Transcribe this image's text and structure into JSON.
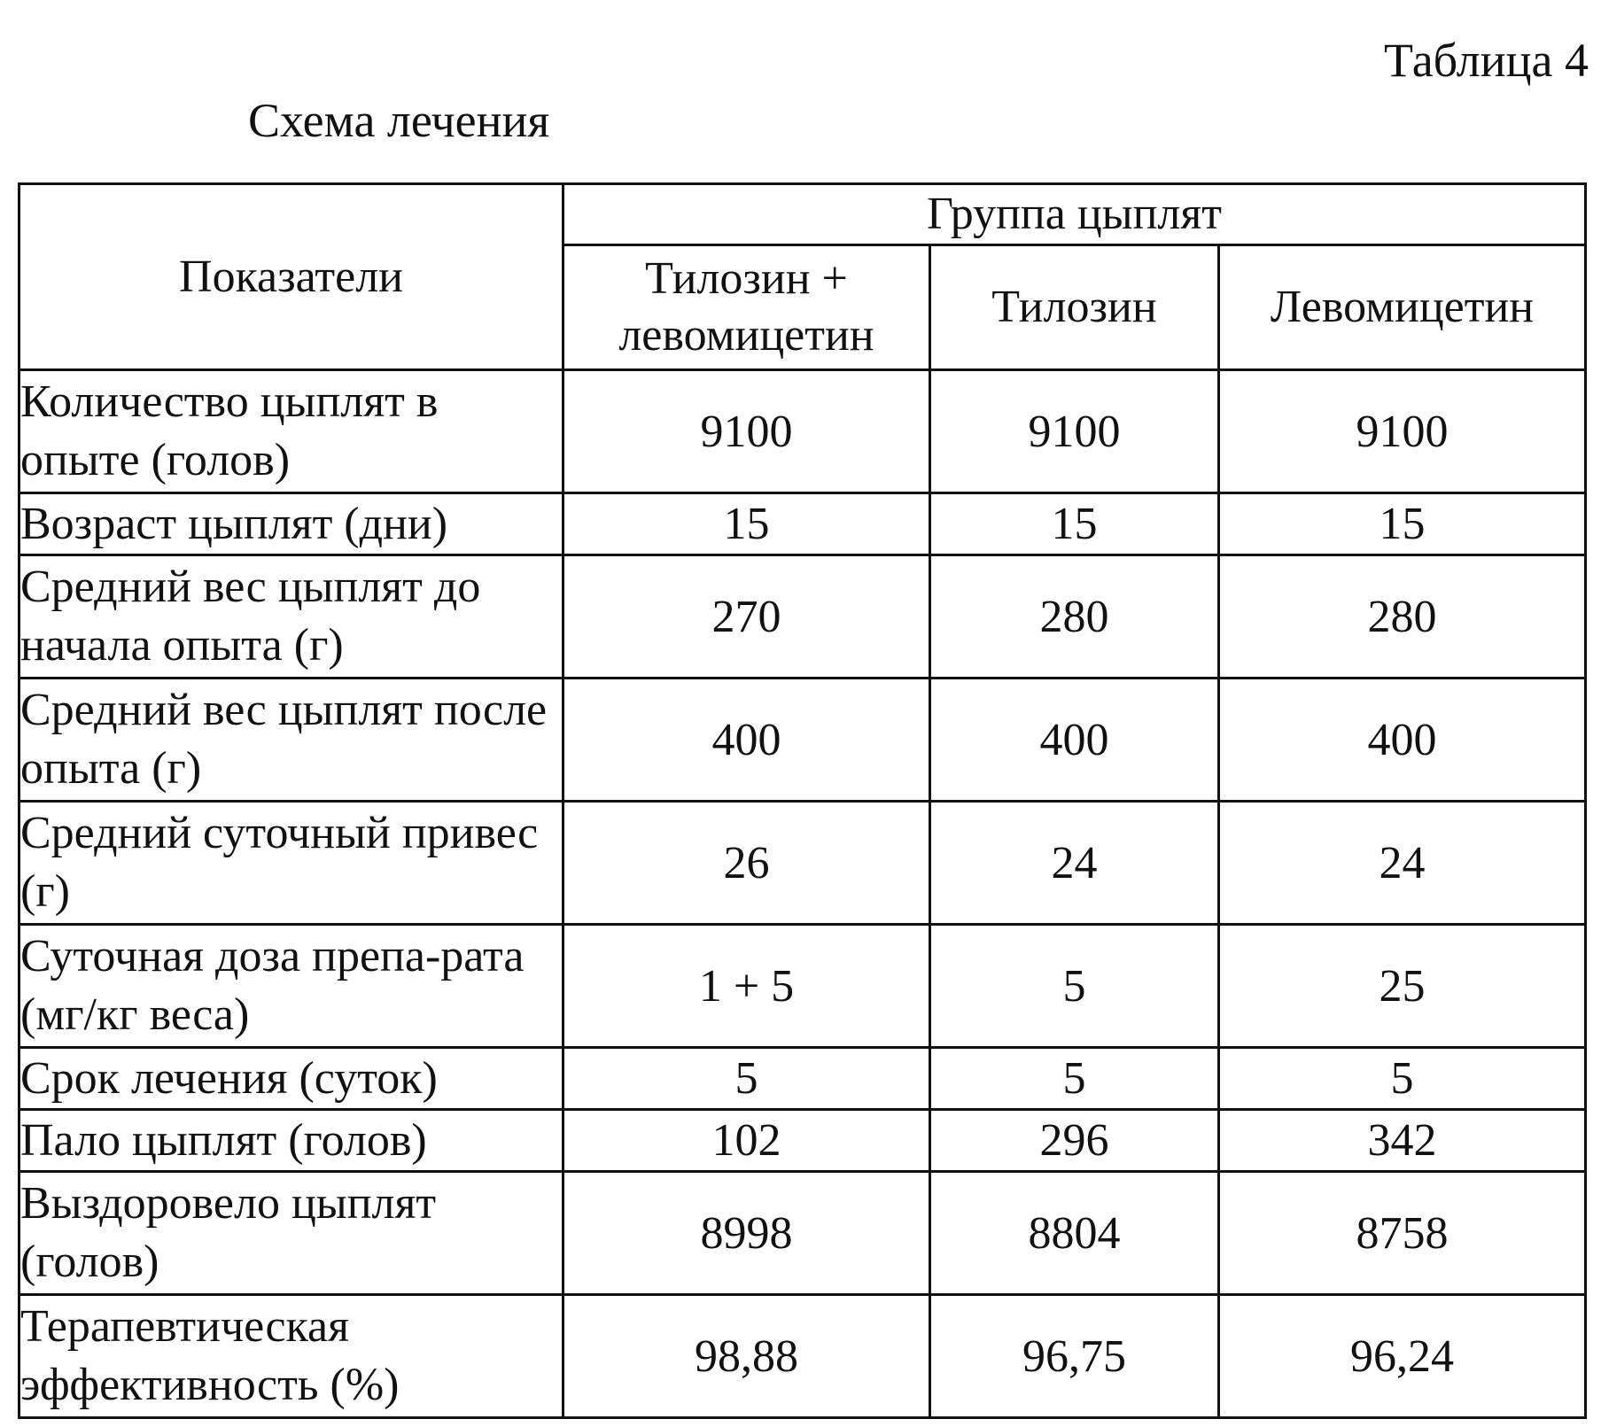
{
  "header": {
    "table_number": "Таблица 4",
    "title": "Схема лечения"
  },
  "table": {
    "label_header": "Показатели",
    "group_header": "Группа цыплят",
    "columns": [
      "Тилозин + левомицетин",
      "Тилозин",
      "Левомицетин"
    ],
    "rows": [
      {
        "label": "Количество цыплят в опыте (голов)",
        "values": [
          "9100",
          "9100",
          "9100"
        ]
      },
      {
        "label": "Возраст цыплят (дни)",
        "values": [
          "15",
          "15",
          "15"
        ]
      },
      {
        "label": "Средний вес цыплят до начала опыта (г)",
        "values": [
          "270",
          "280",
          "280"
        ]
      },
      {
        "label": "Средний вес цыплят после опыта (г)",
        "values": [
          "400",
          "400",
          "400"
        ]
      },
      {
        "label": "Средний суточный привес (г)",
        "values": [
          "26",
          "24",
          "24"
        ]
      },
      {
        "label": "Суточная доза препа-рата (мг/кг веса)",
        "values": [
          "1 + 5",
          "5",
          "25"
        ]
      },
      {
        "label": "Срок лечения (суток)",
        "values": [
          "5",
          "5",
          "5"
        ]
      },
      {
        "label": "Пало цыплят (голов)",
        "values": [
          "102",
          "296",
          "342"
        ]
      },
      {
        "label": "Выздоровело цыплят (голов)",
        "values": [
          "8998",
          "8804",
          "8758"
        ]
      },
      {
        "label": "Терапевтическая эффективность (%)",
        "values": [
          "98,88",
          "96,75",
          "96,24"
        ]
      }
    ]
  }
}
